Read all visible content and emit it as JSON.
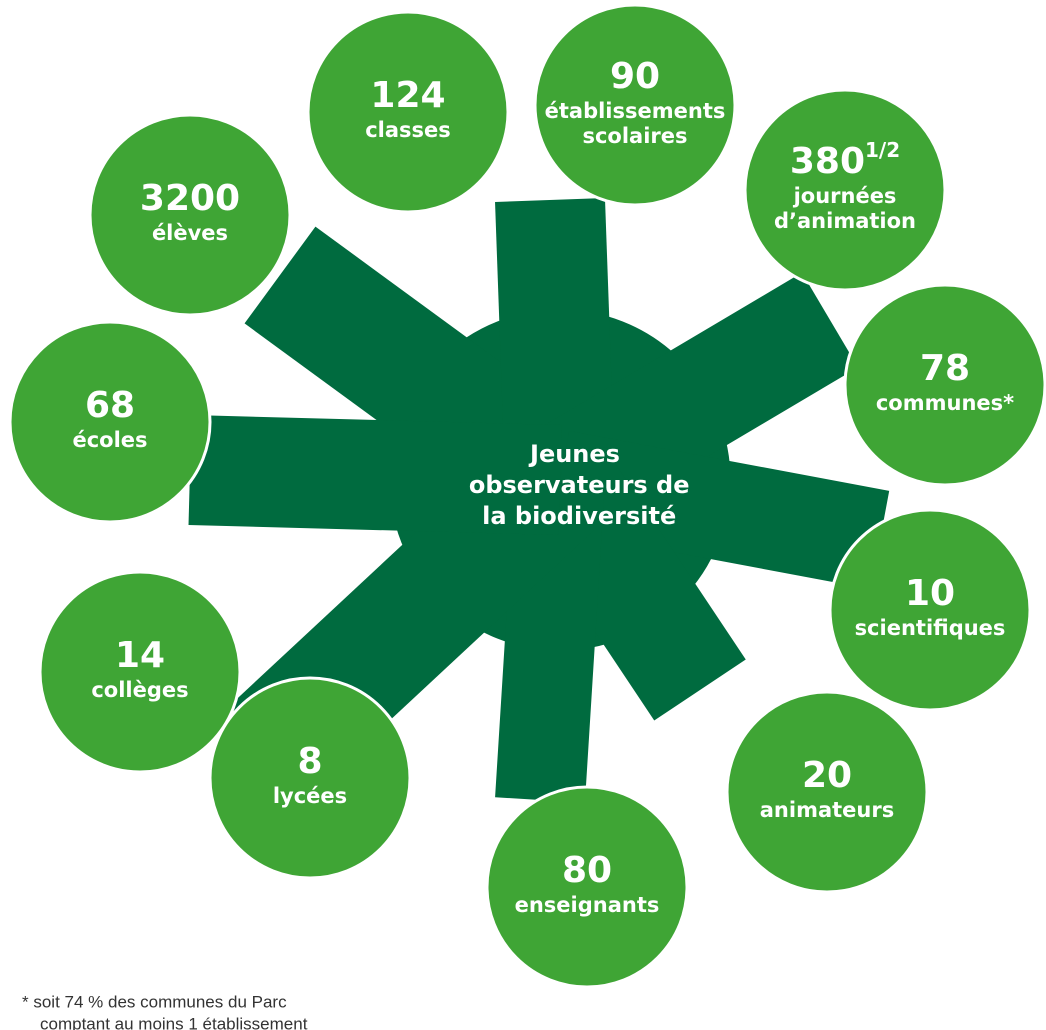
{
  "title": "Jeunes observateurs de la biodiversité",
  "nodes": [
    {
      "number": "124",
      "label": [
        "classes"
      ]
    },
    {
      "number": "90",
      "label": [
        "établissements",
        "scolaires"
      ]
    },
    {
      "number": "380",
      "superscript": "1/2",
      "label": [
        "journées",
        "d’animation"
      ]
    },
    {
      "number": "78",
      "label": [
        "communes*"
      ]
    },
    {
      "number": "10",
      "label": [
        "scientifiques"
      ]
    },
    {
      "number": "20",
      "label": [
        "animateurs"
      ]
    },
    {
      "number": "80",
      "label": [
        "enseignants"
      ]
    },
    {
      "number": "8",
      "label": [
        "lycées"
      ]
    },
    {
      "number": "14",
      "label": [
        "collèges"
      ]
    },
    {
      "number": "68",
      "label": [
        "écoles"
      ]
    },
    {
      "number": "3200",
      "label": [
        "élèves"
      ]
    }
  ],
  "footnote": [
    "* soit 74 % des communes du Parc",
    "comptant au moins 1 établissement"
  ]
}
